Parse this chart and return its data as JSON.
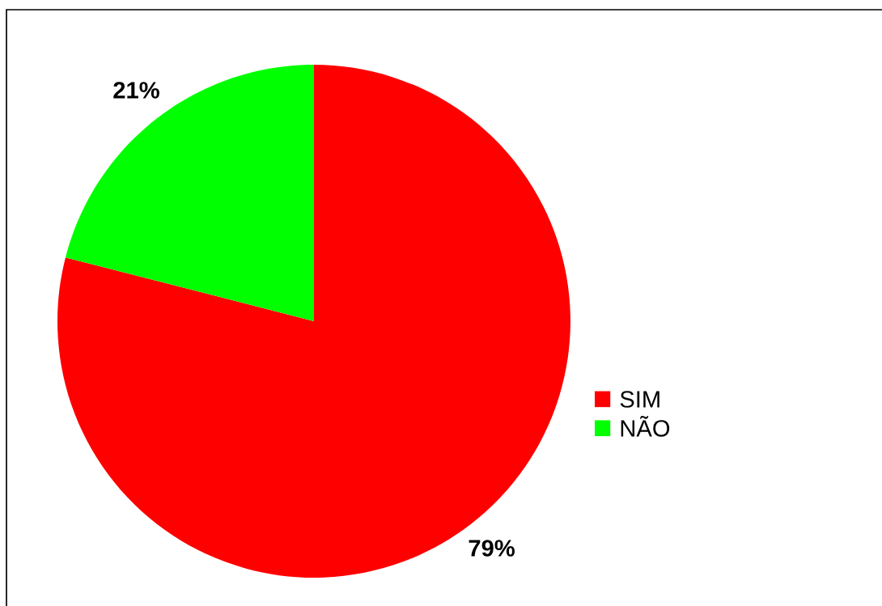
{
  "chart_data": {
    "type": "pie",
    "categories": [
      "SIM",
      "NÃO"
    ],
    "values": [
      79,
      21
    ],
    "colors": [
      "#ff0000",
      "#00ff00"
    ],
    "value_labels": [
      "79%",
      "21%"
    ],
    "legend": "right"
  }
}
